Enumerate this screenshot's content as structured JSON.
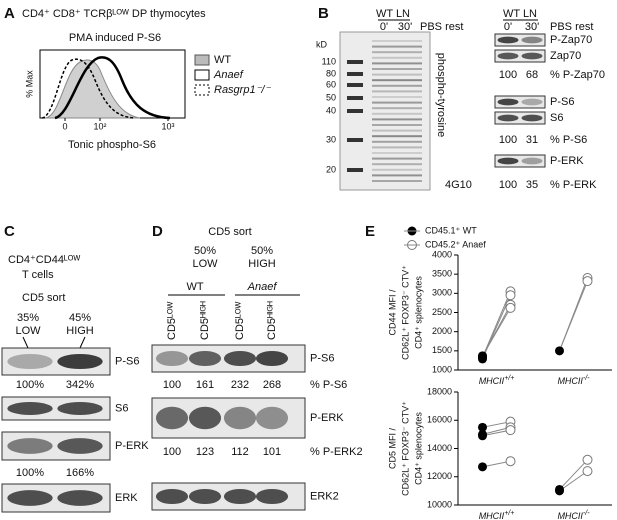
{
  "A": {
    "label": "A",
    "title": "CD4⁺ CD8⁺ TCRβᴸᴼᵂ DP thymocytes",
    "subtitle": "PMA induced P-S6",
    "ylabel": "% Max",
    "xticks": [
      "0",
      "10²",
      "10³"
    ],
    "xlabel": "Tonic phospho-S6",
    "legend": [
      "WT",
      "Anaef",
      "Rasgrp1⁻/⁻"
    ]
  },
  "B": {
    "label": "B",
    "kd": "kD",
    "markers": [
      "110",
      "80",
      "60",
      "50",
      "40",
      "30",
      "20"
    ],
    "header": "WT LN",
    "lanes": [
      "0'",
      "30'"
    ],
    "condition": "PBS rest",
    "stain": "phospho-tyrosine",
    "antibody": "4G10",
    "right": {
      "header": "WT LN",
      "lanes": [
        "0'",
        "30'"
      ],
      "condition": "PBS rest",
      "blots": [
        {
          "bands": [
            "P-Zap70",
            "Zap70"
          ],
          "values": [
            100,
            68
          ],
          "quant": "% P-Zap70"
        },
        {
          "bands": [
            "P-S6",
            "S6"
          ],
          "values": [
            100,
            31
          ],
          "quant": "% P-S6"
        },
        {
          "bands": [
            "P-ERK"
          ],
          "values": [
            100,
            35
          ],
          "quant": "% P-ERK"
        }
      ]
    }
  },
  "C": {
    "label": "C",
    "population": [
      "CD4⁺CD44ᴸᴼᵂ",
      "T cells"
    ],
    "sort": "CD5 sort",
    "columns": [
      [
        "35%",
        "LOW"
      ],
      [
        "45%",
        "HIGH"
      ]
    ],
    "blots": [
      {
        "band": "P-S6",
        "values": [
          "100%",
          "342%"
        ]
      },
      {
        "band": "S6"
      },
      {
        "band": "P-ERK",
        "values": [
          "100%",
          "166%"
        ]
      },
      {
        "band": "ERK"
      }
    ]
  },
  "D": {
    "label": "D",
    "sort": "CD5 sort",
    "columns": [
      [
        "50%",
        "LOW"
      ],
      [
        "50%",
        "HIGH"
      ]
    ],
    "groups": [
      "WT",
      "Anaef"
    ],
    "lanes": [
      "CD5ᴸᴼᵂ",
      "CD5ᴴᴵᴳᴴ",
      "CD5ᴸᴼᵂ",
      "CD5ᴴᴵᴳᴴ"
    ],
    "blots": [
      {
        "band": "P-S6",
        "values": [
          100,
          161,
          232,
          268
        ],
        "quant": "% P-S6"
      },
      {
        "band": "P-ERK",
        "values": [
          100,
          123,
          112,
          101
        ],
        "quant": "% P-ERK2"
      },
      {
        "band": "ERK2"
      }
    ]
  },
  "E": {
    "label": "E",
    "legend": [
      "CD45.1⁺ WT",
      "CD45.2⁺ Anaef"
    ],
    "charts": [
      {
        "ylabel": [
          "CD44 MFI /",
          "CD62L⁺ FOXP3⁻ CTV⁺",
          "CD4⁺ splenocytes"
        ],
        "ylim": [
          1000,
          4000
        ],
        "yticks": [
          1000,
          1500,
          2000,
          2500,
          3000,
          3500,
          4000
        ],
        "groups": [
          {
            "name": "MHCII",
            "sup": "+/+",
            "wt": [
              1330,
              1290,
              1350,
              1370
            ],
            "anaef": [
              3050,
              2950,
              2700,
              2620
            ]
          },
          {
            "name": "MHCII",
            "sup": "-/-",
            "wt": [
              1500
            ],
            "anaef": [
              3400,
              3320
            ]
          }
        ]
      },
      {
        "ylabel": [
          "CD5 MFI /",
          "CD62L⁺ FOXP3⁻ CTV⁺",
          "CD4⁺ splenocytes"
        ],
        "ylim": [
          10000,
          18000
        ],
        "yticks": [
          10000,
          12000,
          14000,
          16000,
          18000
        ],
        "groups": [
          {
            "name": "MHCII",
            "sup": "+/+",
            "wt": [
              15500,
              15000,
              14900,
              12700
            ],
            "anaef": [
              15900,
              15500,
              15300,
              13100
            ]
          },
          {
            "name": "MHCII",
            "sup": "-/-",
            "wt": [
              11100,
              11000
            ],
            "anaef": [
              13200,
              12400
            ]
          }
        ]
      }
    ]
  }
}
